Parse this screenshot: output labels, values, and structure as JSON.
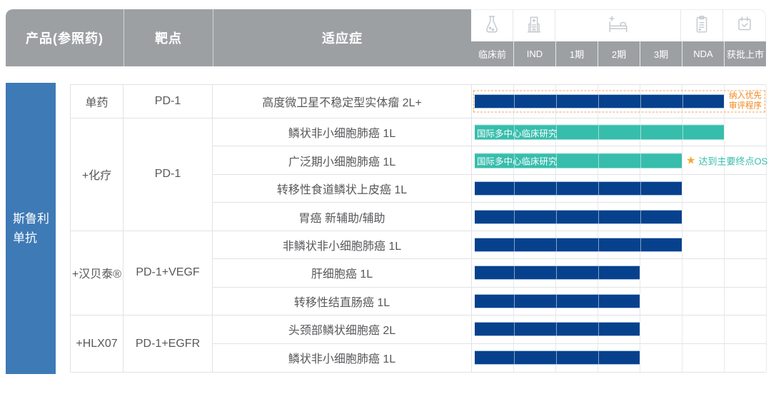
{
  "colors": {
    "header_gray": "#9DA0A3",
    "sidebar_blue": "#3E7AB6",
    "bar_navy": "#07418D",
    "bar_teal": "#37BDAC",
    "accent_orange": "#F08519",
    "star_gold": "#F6A82A",
    "grid_line": "#E1E2E5"
  },
  "header": {
    "columns": {
      "product": "产品(参照药)",
      "target": "靶点",
      "indication": "适应症"
    },
    "phases": [
      {
        "label": "临床前",
        "icon": "flask-icon"
      },
      {
        "label": "IND",
        "icon": "hospital-building-icon"
      },
      {
        "label": "1期",
        "icon": "hospital-bed-icon"
      },
      {
        "label": "2期",
        "icon": "hospital-bed-icon"
      },
      {
        "label": "3期",
        "icon": "hospital-bed-icon"
      },
      {
        "label": "NDA",
        "icon": "clipboard-icon"
      },
      {
        "label": "获批上市",
        "icon": "calendar-check-icon"
      }
    ]
  },
  "sidebar": {
    "product_name_lines": [
      "斯鲁利",
      "单抗"
    ]
  },
  "groups": [
    {
      "combo": "单药",
      "target": "PD-1",
      "rows": [
        {
          "indication": "高度微卫星不稳定型实体瘤 2L+",
          "bar": {
            "style": "navy",
            "span_cols": 6,
            "phase_reach": "NDA"
          },
          "priority_box": {
            "lines": [
              "纳入优先",
              "审评程序"
            ]
          }
        }
      ]
    },
    {
      "combo": "+化疗",
      "target": "PD-1",
      "rows": [
        {
          "indication": "鳞状非小细胞肺癌 1L",
          "bar": {
            "style": "teal",
            "label": "国际多中心临床研究",
            "span_cols": 6,
            "phase_reach": "NDA"
          }
        },
        {
          "indication": "广泛期小细胞肺癌 1L",
          "bar": {
            "style": "teal",
            "label": "国际多中心临床研究",
            "span_cols": 5,
            "phase_reach": "3期"
          },
          "milestone": {
            "icon": "star-icon",
            "text": "达到主要终点OS"
          }
        },
        {
          "indication": "转移性食道鳞状上皮癌 1L",
          "bar": {
            "style": "navy",
            "span_cols": 5,
            "phase_reach": "3期"
          }
        },
        {
          "indication": "胃癌 新辅助/辅助",
          "bar": {
            "style": "navy",
            "span_cols": 5,
            "phase_reach": "3期"
          }
        }
      ]
    },
    {
      "combo": "+汉贝泰®",
      "target": "PD-1+VEGF",
      "rows": [
        {
          "indication": "非鳞状非小细胞肺癌 1L",
          "bar": {
            "style": "navy",
            "span_cols": 5,
            "phase_reach": "3期"
          }
        },
        {
          "indication": "肝细胞癌 1L",
          "bar": {
            "style": "navy",
            "span_cols": 4,
            "phase_reach": "2期"
          }
        },
        {
          "indication": "转移性结直肠癌 1L",
          "bar": {
            "style": "navy",
            "span_cols": 4,
            "phase_reach": "2期"
          }
        }
      ]
    },
    {
      "combo": "+HLX07",
      "target": "PD-1+EGFR",
      "rows": [
        {
          "indication": "头颈部鳞状细胞癌 2L",
          "bar": {
            "style": "navy",
            "span_cols": 4,
            "phase_reach": "2期"
          }
        },
        {
          "indication": "鳞状非小细胞肺癌 1L",
          "bar": {
            "style": "navy",
            "span_cols": 4,
            "phase_reach": "2期"
          }
        }
      ]
    }
  ],
  "chart_data": {
    "type": "table",
    "phase_axis": [
      "临床前",
      "IND",
      "1期",
      "2期",
      "3期",
      "NDA",
      "获批上市"
    ],
    "columns": [
      "产品(参照药)",
      "靶点",
      "适应症",
      "phase_reach",
      "annotation"
    ],
    "rows": [
      {
        "product": "斯鲁利单抗",
        "combo": "单药",
        "target": "PD-1",
        "indication": "高度微卫星不稳定型实体瘤 2L+",
        "phase_reach": "NDA",
        "annotation": "纳入优先审评程序"
      },
      {
        "product": "斯鲁利单抗",
        "combo": "+化疗",
        "target": "PD-1",
        "indication": "鳞状非小细胞肺癌 1L",
        "phase_reach": "NDA",
        "bar_label": "国际多中心临床研究"
      },
      {
        "product": "斯鲁利单抗",
        "combo": "+化疗",
        "target": "PD-1",
        "indication": "广泛期小细胞肺癌 1L",
        "phase_reach": "3期",
        "bar_label": "国际多中心临床研究",
        "annotation": "达到主要终点OS"
      },
      {
        "product": "斯鲁利单抗",
        "combo": "+化疗",
        "target": "PD-1",
        "indication": "转移性食道鳞状上皮癌 1L",
        "phase_reach": "3期"
      },
      {
        "product": "斯鲁利单抗",
        "combo": "+化疗",
        "target": "PD-1",
        "indication": "胃癌 新辅助/辅助",
        "phase_reach": "3期"
      },
      {
        "product": "斯鲁利单抗",
        "combo": "+汉贝泰®",
        "target": "PD-1+VEGF",
        "indication": "非鳞状非小细胞肺癌 1L",
        "phase_reach": "3期"
      },
      {
        "product": "斯鲁利单抗",
        "combo": "+汉贝泰®",
        "target": "PD-1+VEGF",
        "indication": "肝细胞癌 1L",
        "phase_reach": "2期"
      },
      {
        "product": "斯鲁利单抗",
        "combo": "+汉贝泰®",
        "target": "PD-1+VEGF",
        "indication": "转移性结直肠癌 1L",
        "phase_reach": "2期"
      },
      {
        "product": "斯鲁利单抗",
        "combo": "+HLX07",
        "target": "PD-1+EGFR",
        "indication": "头颈部鳞状细胞癌 2L",
        "phase_reach": "2期"
      },
      {
        "product": "斯鲁利单抗",
        "combo": "+HLX07",
        "target": "PD-1+EGFR",
        "indication": "鳞状非小细胞肺癌 1L",
        "phase_reach": "2期"
      }
    ]
  }
}
